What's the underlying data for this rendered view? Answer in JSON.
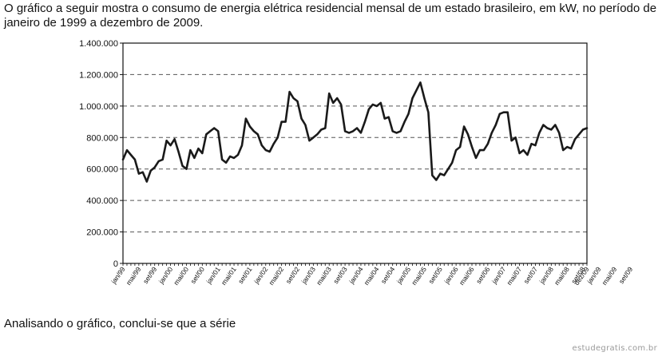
{
  "intro_text": "O gráfico a seguir mostra o consumo de energia elétrica residencial mensal de um estado brasileiro, em kW, no período de janeiro de 1999 a dezembro de 2009.",
  "question_text": "Analisando o gráfico, conclui-se que a série",
  "watermark": "estudegratis.com.br",
  "chart_data": {
    "type": "line",
    "title": "",
    "xlabel": "",
    "ylabel": "",
    "ylim": [
      0,
      1400000
    ],
    "yticks": [
      0,
      200000,
      400000,
      600000,
      800000,
      1000000,
      1200000,
      1400000
    ],
    "ytick_labels": [
      "0",
      "200.000",
      "400.000",
      "600.000",
      "800.000",
      "1.000.000",
      "1.200.000",
      "1.400.000"
    ],
    "grid": "horizontal dashed",
    "legend": "none",
    "line_color": "#1a1a1a",
    "x_ticks": [
      "jan/99",
      "mai/99",
      "set/99",
      "jan/00",
      "mai/00",
      "set/00",
      "jan/01",
      "mai/01",
      "set/01",
      "jan/02",
      "mai/02",
      "set/02",
      "jan/03",
      "mai/03",
      "set/03",
      "jan/04",
      "mai/04",
      "set/04",
      "jan/05",
      "mai/05",
      "set/05",
      "jan/06",
      "mai/06",
      "set/06",
      "jan/07",
      "mai/07",
      "set/07",
      "jan/08",
      "mai/08",
      "set/08",
      "jan/09",
      "mai/09",
      "set/09",
      "dez/09"
    ],
    "series": [
      {
        "values": [
          660000,
          720000,
          690000,
          660000,
          570000,
          580000,
          520000,
          590000,
          610000,
          650000,
          660000,
          780000,
          750000,
          790000,
          710000,
          620000,
          600000,
          720000,
          670000,
          730000,
          700000,
          820000,
          840000,
          860000,
          840000,
          660000,
          640000,
          680000,
          670000,
          690000,
          750000,
          920000,
          870000,
          840000,
          820000,
          750000,
          720000,
          710000,
          760000,
          800000,
          900000,
          900000,
          1090000,
          1050000,
          1030000,
          920000,
          880000,
          780000,
          800000,
          820000,
          850000,
          860000,
          1080000,
          1020000,
          1050000,
          1010000,
          840000,
          830000,
          840000,
          860000,
          830000,
          900000,
          980000,
          1010000,
          1000000,
          1020000,
          920000,
          930000,
          840000,
          830000,
          840000,
          900000,
          950000,
          1050000,
          1100000,
          1150000,
          1050000,
          960000,
          560000,
          530000,
          570000,
          560000,
          600000,
          640000,
          720000,
          740000,
          870000,
          820000,
          740000,
          670000,
          720000,
          720000,
          760000,
          830000,
          880000,
          950000,
          960000,
          960000,
          780000,
          800000,
          700000,
          720000,
          690000,
          760000,
          750000,
          830000,
          880000,
          860000,
          850000,
          880000,
          830000,
          720000,
          740000,
          730000,
          790000,
          820000,
          850000,
          860000
        ]
      }
    ]
  }
}
